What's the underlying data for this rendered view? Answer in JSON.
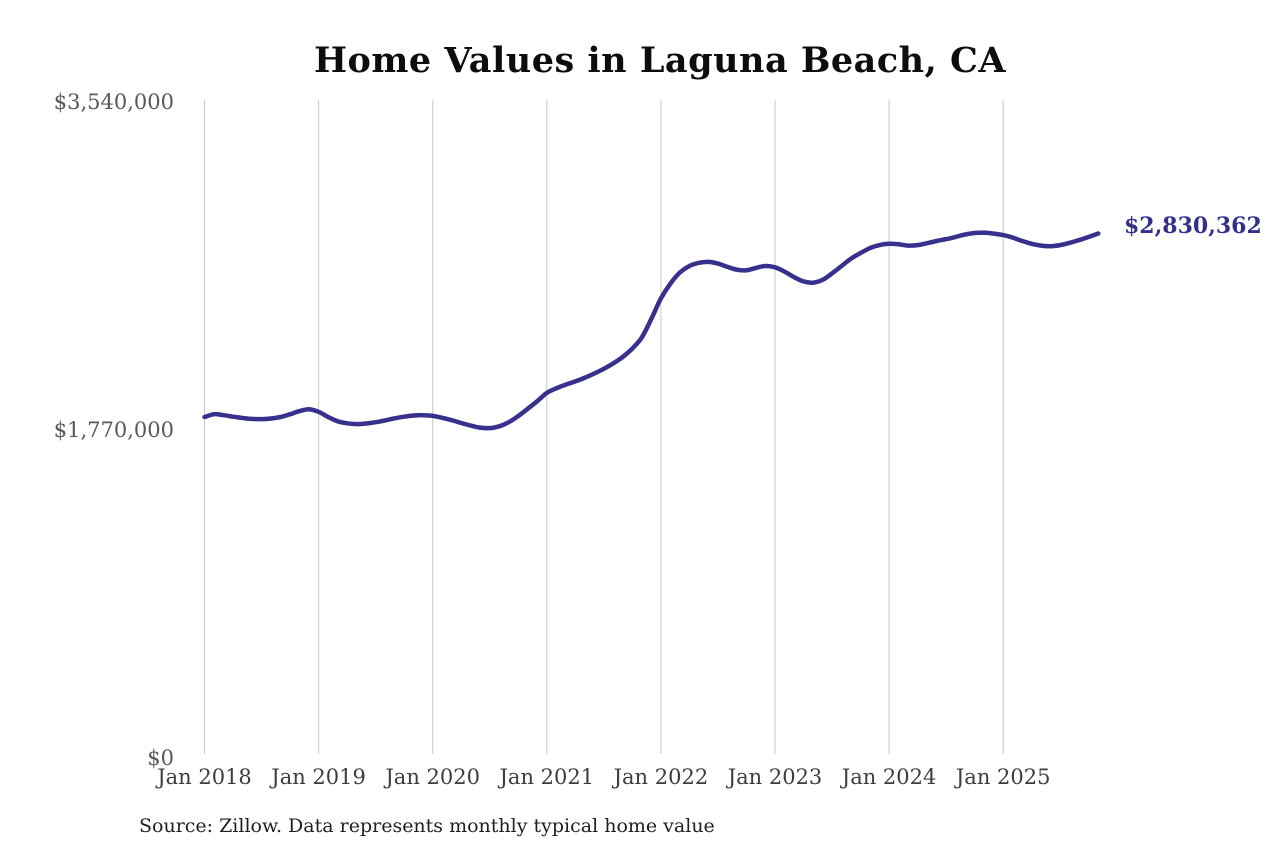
{
  "title": "Home Values in Laguna Beach, CA",
  "source_note": "Source: Zillow. Data represents monthly typical home value",
  "chart_data": {
    "type": "line",
    "title": "Home Values in Laguna Beach, CA",
    "xlabel": "",
    "ylabel": "",
    "ylim": [
      0,
      3540000
    ],
    "grid": "vertical-only",
    "legend": "none",
    "frequency": "monthly",
    "start_month": "Jan 2018",
    "end_month": "Nov 2025",
    "end_label": "$2,830,362",
    "end_value": 2830362,
    "colors": {
      "line": "#37308c",
      "end_label": "#352f8c",
      "grid": "#c9c9c9",
      "y_tick_text": "#585858",
      "x_tick_text": "#3d3d3d"
    },
    "y_ticks": [
      {
        "label": "$0",
        "value": 0
      },
      {
        "label": "$1,770,000",
        "value": 1770000
      },
      {
        "label": "$3,540,000",
        "value": 3540000
      }
    ],
    "x_tick_labels": [
      "Jan 2018",
      "Jan 2019",
      "Jan 2020",
      "Jan 2021",
      "Jan 2022",
      "Jan 2023",
      "Jan 2024",
      "Jan 2025"
    ],
    "values": [
      1840000,
      1855000,
      1850000,
      1842000,
      1835000,
      1830000,
      1829000,
      1832000,
      1840000,
      1855000,
      1872000,
      1882000,
      1868000,
      1840000,
      1817000,
      1806000,
      1802000,
      1805000,
      1812000,
      1822000,
      1833000,
      1842000,
      1848000,
      1850000,
      1846000,
      1836000,
      1823000,
      1808000,
      1794000,
      1783000,
      1780000,
      1790000,
      1812000,
      1845000,
      1885000,
      1926000,
      1970000,
      1995000,
      2015000,
      2032000,
      2052000,
      2075000,
      2100000,
      2130000,
      2165000,
      2210000,
      2270000,
      2370000,
      2480000,
      2560000,
      2620000,
      2655000,
      2672000,
      2677000,
      2668000,
      2650000,
      2635000,
      2632000,
      2645000,
      2655000,
      2648000,
      2625000,
      2595000,
      2572000,
      2565000,
      2580000,
      2615000,
      2655000,
      2695000,
      2725000,
      2752000,
      2768000,
      2775000,
      2772000,
      2765000,
      2768000,
      2778000,
      2790000,
      2800000,
      2812000,
      2825000,
      2833000,
      2835000,
      2830000,
      2822000,
      2808000,
      2790000,
      2775000,
      2765000,
      2762000,
      2768000,
      2780000,
      2795000,
      2812000,
      2830362
    ]
  }
}
